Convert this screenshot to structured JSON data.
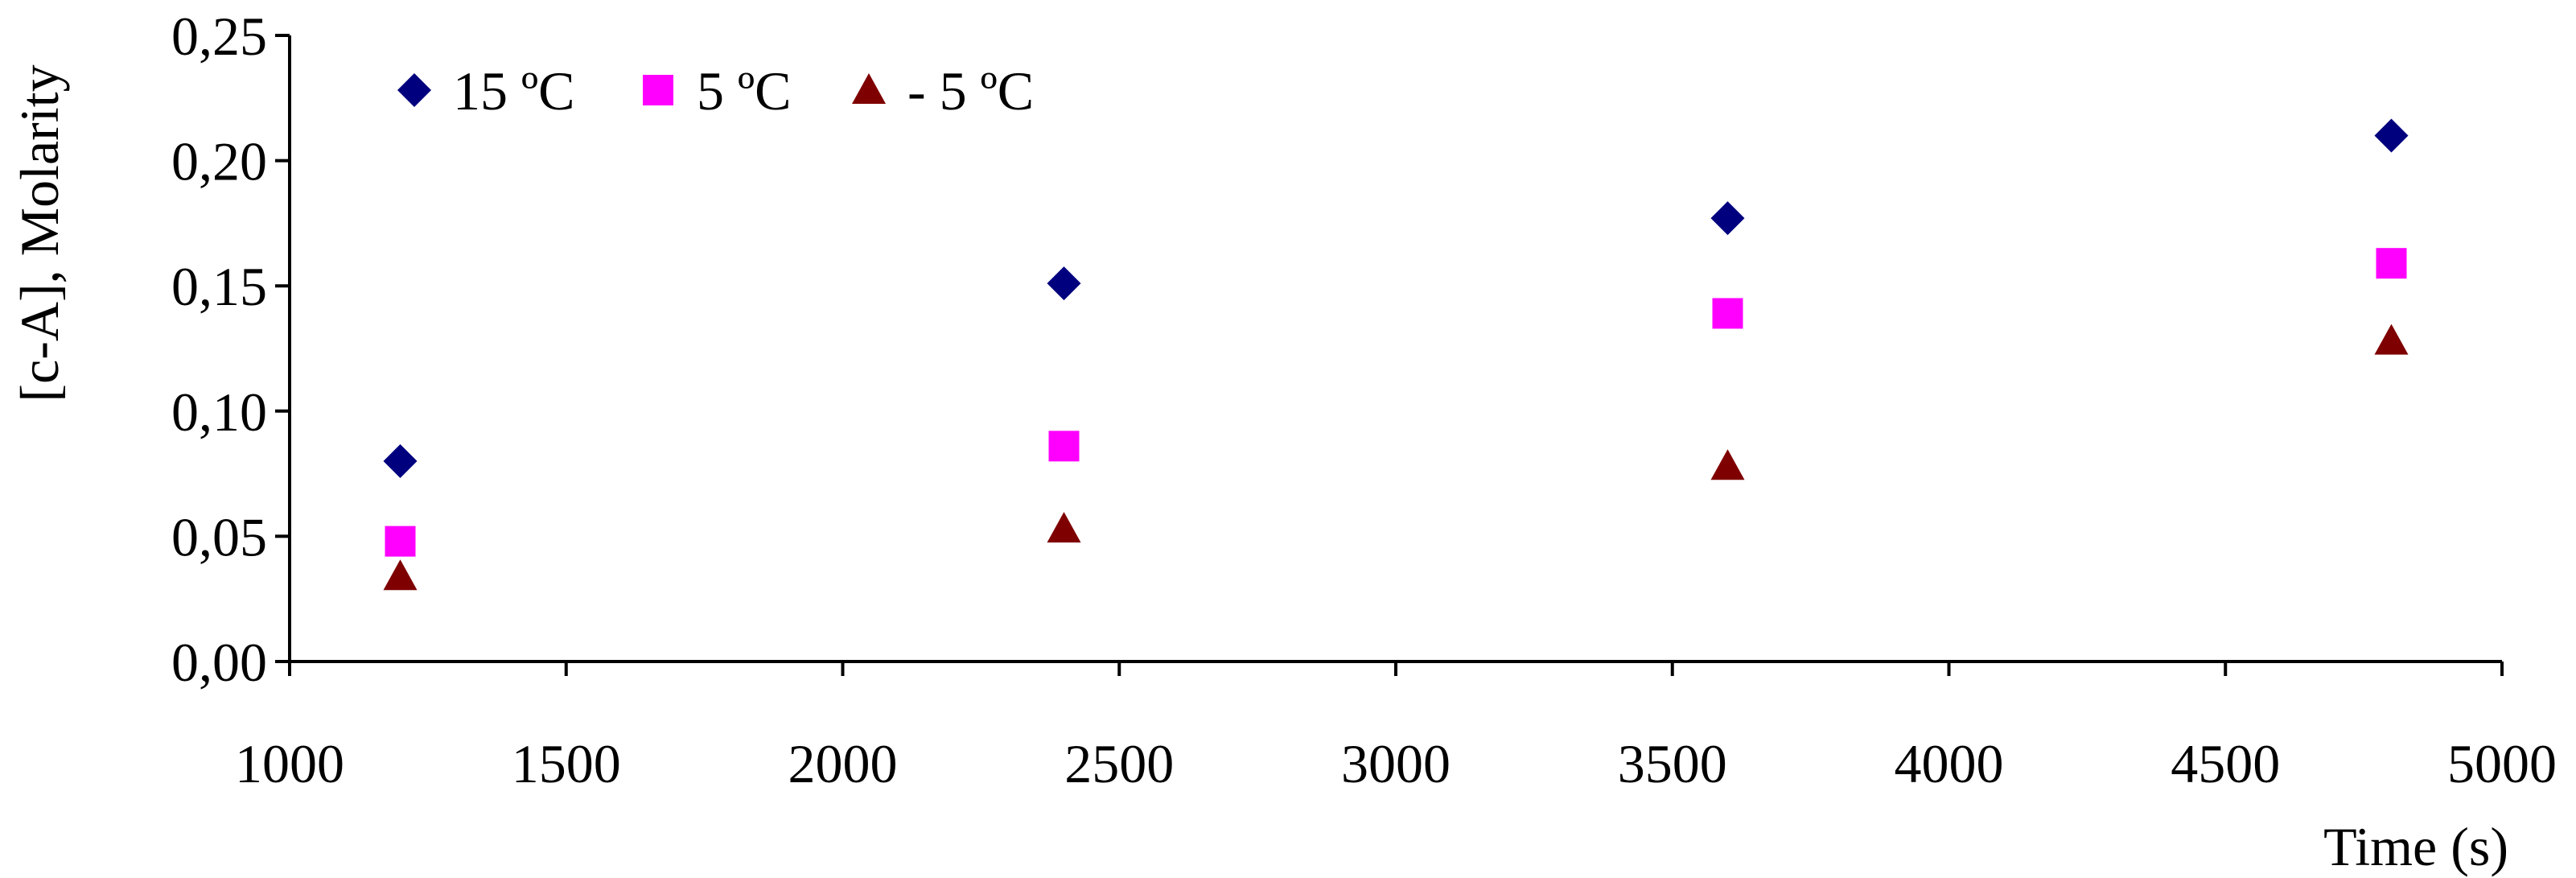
{
  "chart_data": {
    "type": "scatter",
    "title": "",
    "xlabel": "Time (s)",
    "ylabel": "[c-A], Molarity",
    "xlim": [
      1000,
      5000
    ],
    "ylim": [
      0,
      0.25
    ],
    "x_ticks": [
      "1000",
      "1500",
      "2000",
      "2500",
      "3000",
      "3500",
      "4000",
      "4500",
      "5000"
    ],
    "y_ticks": [
      "0,00",
      "0,05",
      "0,10",
      "0,15",
      "0,20",
      "0,25"
    ],
    "grid": false,
    "legend_position": "top-left",
    "series": [
      {
        "name": "15 ºC",
        "marker": "diamond",
        "color": "#00007f",
        "x": [
          1200,
          2400,
          3600,
          4800
        ],
        "y": [
          0.08,
          0.151,
          0.177,
          0.21
        ]
      },
      {
        "name": "5 ºC",
        "marker": "square",
        "color": "#ff00ff",
        "x": [
          1200,
          2400,
          3600,
          4800
        ],
        "y": [
          0.048,
          0.086,
          0.139,
          0.159
        ]
      },
      {
        "name": "- 5 ºC",
        "marker": "triangle",
        "color": "#7f0000",
        "x": [
          1200,
          2400,
          3600,
          4800
        ],
        "y": [
          0.034,
          0.053,
          0.078,
          0.128
        ]
      }
    ]
  }
}
